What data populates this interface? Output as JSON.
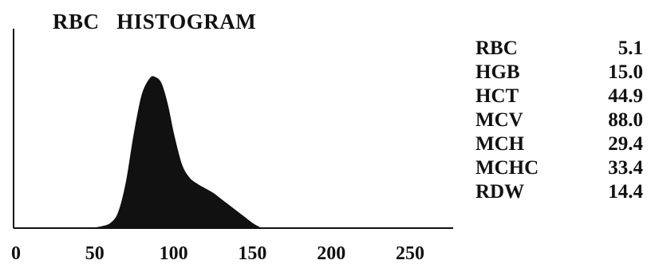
{
  "chart_data": {
    "type": "area",
    "title": "RBC   HISTOGRAM",
    "xlabel": "",
    "ylabel": "",
    "xlim": [
      0,
      280
    ],
    "ylim": [
      0,
      1
    ],
    "grid": false,
    "x_ticks": [
      "0",
      "50",
      "100",
      "150",
      "200",
      "250"
    ],
    "x_tick_values": [
      0,
      50,
      100,
      150,
      200,
      250
    ],
    "fill_color": "#111111",
    "x": [
      50,
      55,
      60,
      65,
      70,
      75,
      80,
      85,
      88,
      92,
      96,
      100,
      105,
      110,
      115,
      120,
      125,
      130,
      135,
      140,
      145,
      150,
      155
    ],
    "values": [
      0.0,
      0.01,
      0.03,
      0.1,
      0.3,
      0.62,
      0.88,
      0.99,
      1.0,
      0.96,
      0.82,
      0.62,
      0.42,
      0.33,
      0.29,
      0.26,
      0.23,
      0.19,
      0.15,
      0.11,
      0.07,
      0.03,
      0.0
    ]
  },
  "indices": [
    {
      "label": "RBC",
      "value": "5.1"
    },
    {
      "label": "HGB",
      "value": "15.0"
    },
    {
      "label": "HCT",
      "value": "44.9"
    },
    {
      "label": "MCV",
      "value": "88.0"
    },
    {
      "label": "MCH",
      "value": "29.4"
    },
    {
      "label": "MCHC",
      "value": "33.4"
    },
    {
      "label": "RDW",
      "value": "14.4"
    }
  ]
}
